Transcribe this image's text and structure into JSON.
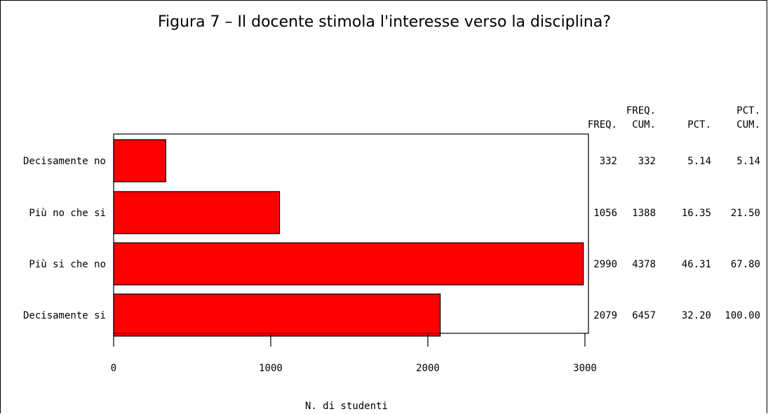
{
  "chart_data": {
    "type": "bar",
    "orientation": "horizontal",
    "title": "Figura 7 – Il docente stimola l'interesse verso la disciplina?",
    "categories": [
      "Decisamente no",
      "Più no che si",
      "Più si che no",
      "Decisamente si"
    ],
    "values": [
      332,
      1056,
      2990,
      2079
    ],
    "xlabel": "N. di studenti",
    "ylabel": "",
    "xlim": [
      0,
      3000
    ],
    "xticks": [
      0,
      1000,
      2000,
      3000
    ],
    "bar_color": "#ff0000",
    "grid": false,
    "table": {
      "columns": [
        {
          "lines": [
            "FREQ."
          ],
          "key": "freq"
        },
        {
          "lines": [
            "FREQ.",
            "CUM."
          ],
          "key": "freq_cum"
        },
        {
          "lines": [
            "PCT."
          ],
          "key": "pct"
        },
        {
          "lines": [
            "PCT.",
            "CUM."
          ],
          "key": "pct_cum"
        }
      ],
      "rows": [
        {
          "freq": "332",
          "freq_cum": "332",
          "pct": "5.14",
          "pct_cum": "5.14"
        },
        {
          "freq": "1056",
          "freq_cum": "1388",
          "pct": "16.35",
          "pct_cum": "21.50"
        },
        {
          "freq": "2990",
          "freq_cum": "4378",
          "pct": "46.31",
          "pct_cum": "67.80"
        },
        {
          "freq": "2079",
          "freq_cum": "6457",
          "pct": "32.20",
          "pct_cum": "100.00"
        }
      ]
    }
  }
}
